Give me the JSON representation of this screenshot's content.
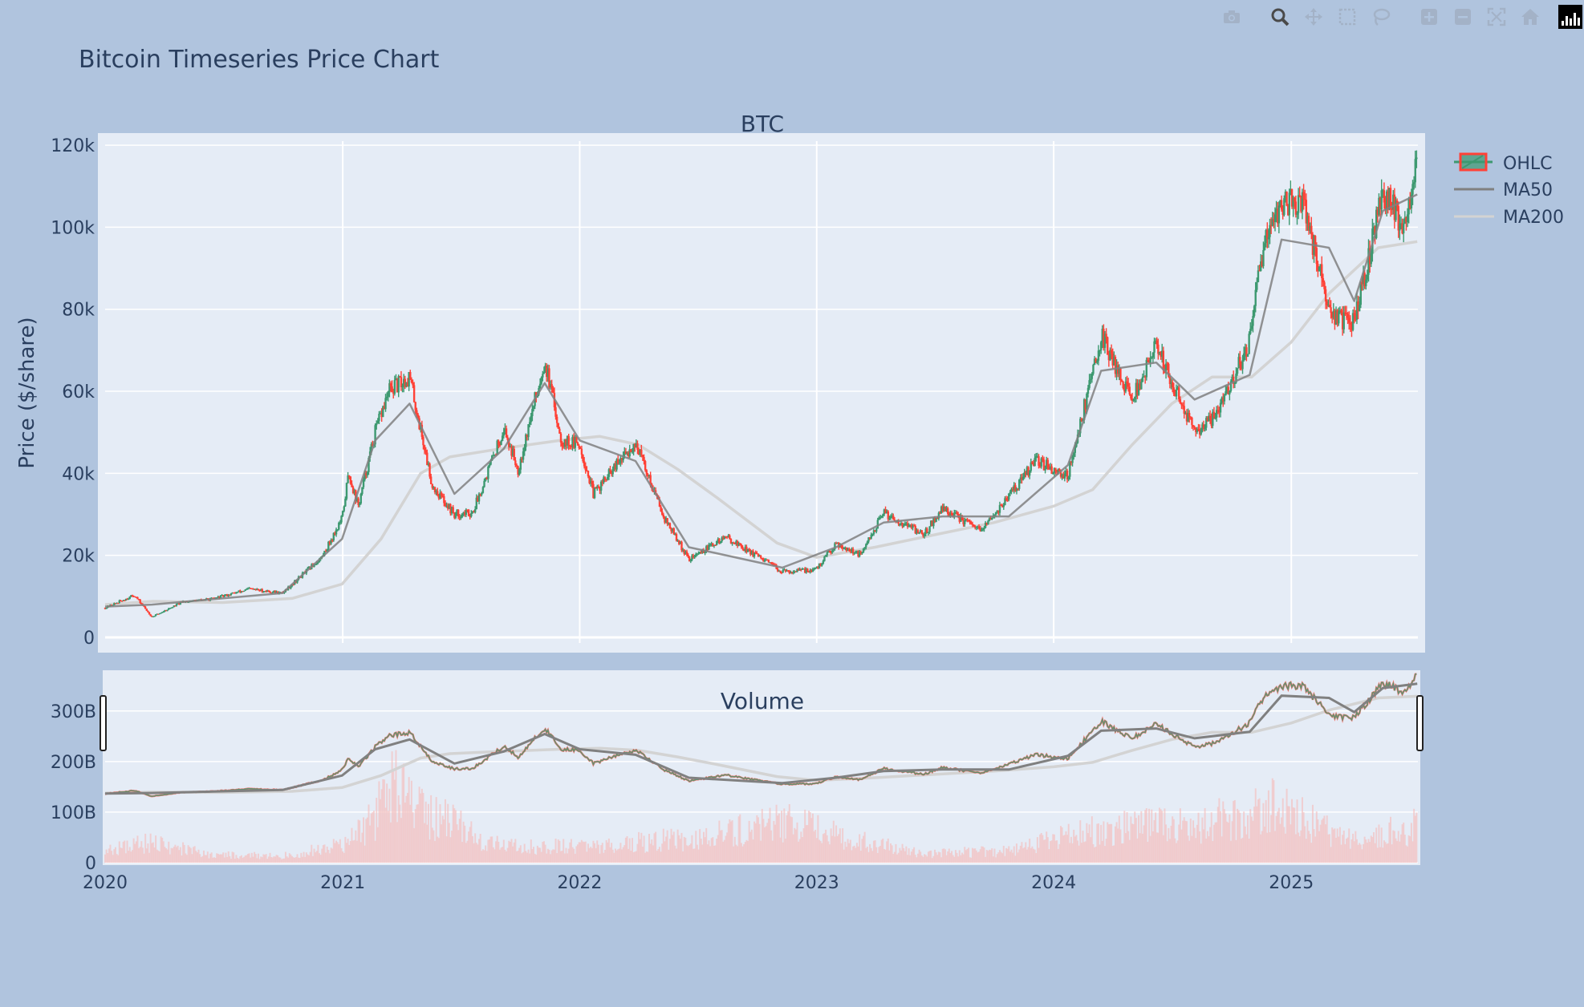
{
  "title": "Bitcoin Timeseries Price Chart",
  "toolbar": [
    {
      "name": "camera-icon",
      "active": false
    },
    {
      "name": "zoom-icon",
      "active": true
    },
    {
      "name": "pan-icon",
      "active": false
    },
    {
      "name": "box-select-icon",
      "active": false
    },
    {
      "name": "lasso-select-icon",
      "active": false
    },
    {
      "name": "zoom-in-icon",
      "active": false
    },
    {
      "name": "zoom-out-icon",
      "active": false
    },
    {
      "name": "autoscale-icon",
      "active": false
    },
    {
      "name": "reset-axes-icon",
      "active": false
    },
    {
      "name": "plotly-logo-icon",
      "active": false
    }
  ],
  "colors": {
    "paper": "#b0c4de",
    "plot": "#e5ecf6",
    "increasing": "#3d9970",
    "decreasing": "#ff4136",
    "ma50": "#808080",
    "ma200": "#d3d3d3",
    "volume": "#f4c2c2",
    "text": "#2a3f5f"
  },
  "chart_data": [
    {
      "type": "candlestick",
      "subplot_title": "BTC",
      "ylabel": "Price ($/share)",
      "ylim": [
        0,
        121000
      ],
      "yticks": [
        0,
        20000,
        40000,
        60000,
        80000,
        100000,
        120000
      ],
      "ytick_labels": [
        "0",
        "20k",
        "40k",
        "60k",
        "80k",
        "100k",
        "120k"
      ],
      "xlim": [
        "2020-01-01",
        "2025-07-15"
      ],
      "xticks": [
        "2021-01-01",
        "2022-01-01",
        "2023-01-01",
        "2024-01-01",
        "2025-01-01"
      ],
      "legend": {
        "position": "top-right",
        "entries": [
          "OHLC",
          "MA50",
          "MA200"
        ]
      },
      "series": [
        {
          "name": "OHLC",
          "kind": "ohlc",
          "x": [
            "2020-01-01",
            "2020-02-15",
            "2020-03-13",
            "2020-04-30",
            "2020-06-15",
            "2020-08-10",
            "2020-09-30",
            "2020-11-30",
            "2020-12-31",
            "2021-01-10",
            "2021-01-25",
            "2021-02-20",
            "2021-03-13",
            "2021-04-14",
            "2021-05-19",
            "2021-06-22",
            "2021-07-20",
            "2021-09-06",
            "2021-09-28",
            "2021-11-08",
            "2021-12-04",
            "2022-01-01",
            "2022-01-22",
            "2022-03-28",
            "2022-05-12",
            "2022-06-18",
            "2022-08-14",
            "2022-11-09",
            "2022-12-31",
            "2023-01-31",
            "2023-03-10",
            "2023-04-14",
            "2023-06-15",
            "2023-07-14",
            "2023-09-11",
            "2023-10-24",
            "2023-12-05",
            "2024-01-23",
            "2024-03-14",
            "2024-05-01",
            "2024-06-07",
            "2024-08-05",
            "2024-09-06",
            "2024-10-29",
            "2024-11-22",
            "2024-12-17",
            "2025-01-20",
            "2025-02-28",
            "2025-04-08",
            "2025-05-22",
            "2025-06-22",
            "2025-07-14"
          ],
          "close": [
            7200,
            10300,
            5000,
            8700,
            9400,
            11800,
            10800,
            19600,
            29000,
            40000,
            32000,
            50000,
            60000,
            63500,
            37000,
            30000,
            30500,
            51000,
            41000,
            67500,
            48000,
            47000,
            35000,
            47500,
            29000,
            19000,
            24500,
            16000,
            16500,
            23000,
            20000,
            30500,
            25000,
            31500,
            25800,
            34500,
            43000,
            39500,
            73500,
            58000,
            71000,
            50000,
            54000,
            72000,
            99000,
            106000,
            106000,
            79000,
            76500,
            109000,
            100500,
            116000
          ]
        },
        {
          "name": "MA50",
          "kind": "line",
          "x": [
            "2020-01-01",
            "2020-03-13",
            "2020-06-15",
            "2020-09-30",
            "2020-12-31",
            "2021-02-20",
            "2021-04-14",
            "2021-06-22",
            "2021-09-06",
            "2021-11-08",
            "2022-01-01",
            "2022-03-28",
            "2022-06-18",
            "2022-11-09",
            "2023-01-31",
            "2023-04-14",
            "2023-07-14",
            "2023-10-24",
            "2024-01-23",
            "2024-03-14",
            "2024-06-07",
            "2024-08-05",
            "2024-10-29",
            "2024-12-17",
            "2025-02-28",
            "2025-04-08",
            "2025-05-22",
            "2025-07-14"
          ],
          "y": [
            7500,
            8000,
            9300,
            10800,
            24000,
            48000,
            57000,
            35000,
            46000,
            62000,
            48000,
            43000,
            22000,
            17000,
            22000,
            28000,
            29500,
            29500,
            42000,
            65000,
            67000,
            58000,
            64000,
            97000,
            95000,
            82000,
            104000,
            108000
          ]
        },
        {
          "name": "MA200",
          "kind": "line",
          "x": [
            "2020-01-01",
            "2020-03-15",
            "2020-06-30",
            "2020-10-15",
            "2020-12-31",
            "2021-03-01",
            "2021-05-01",
            "2021-06-15",
            "2021-09-01",
            "2021-12-01",
            "2022-02-01",
            "2022-04-01",
            "2022-06-01",
            "2022-08-01",
            "2022-11-01",
            "2023-01-01",
            "2023-04-01",
            "2023-07-01",
            "2023-10-01",
            "2024-01-01",
            "2024-03-01",
            "2024-05-01",
            "2024-07-01",
            "2024-09-01",
            "2024-11-01",
            "2025-01-01",
            "2025-03-01",
            "2025-05-15",
            "2025-07-14"
          ],
          "y": [
            8000,
            8800,
            8500,
            9500,
            13000,
            24000,
            40000,
            44000,
            46000,
            48000,
            49000,
            47000,
            41000,
            34000,
            23000,
            19500,
            22000,
            25000,
            28000,
            32000,
            36000,
            47000,
            57000,
            63500,
            63500,
            72000,
            84000,
            95000,
            96500
          ]
        }
      ]
    },
    {
      "type": "bar",
      "subplot_title": "Volume",
      "ylim": [
        0,
        390000000000
      ],
      "yticks": [
        0,
        100000000000,
        200000000000,
        300000000000
      ],
      "ytick_labels": [
        "0",
        "100B",
        "200B",
        "300B"
      ],
      "xtick_labels": [
        "2020",
        "2021",
        "2022",
        "2023",
        "2024",
        "2025"
      ],
      "series": [
        {
          "name": "Volume",
          "x": [
            "2020-01-01",
            "2020-03-13",
            "2020-06-15",
            "2020-09-30",
            "2020-12-31",
            "2021-02-20",
            "2021-03-13",
            "2021-05-19",
            "2021-09-06",
            "2021-11-08",
            "2022-01-22",
            "2022-05-12",
            "2022-06-18",
            "2022-11-09",
            "2023-03-10",
            "2023-06-15",
            "2023-10-24",
            "2024-03-14",
            "2024-08-05",
            "2024-11-12",
            "2024-12-05",
            "2025-02-03",
            "2025-04-08",
            "2025-07-14"
          ],
          "y": [
            30000000000,
            55000000000,
            20000000000,
            18000000000,
            45000000000,
            120000000000,
            220000000000,
            125000000000,
            40000000000,
            45000000000,
            40000000000,
            60000000000,
            55000000000,
            110000000000,
            55000000000,
            25000000000,
            30000000000,
            90000000000,
            100000000000,
            130000000000,
            150000000000,
            100000000000,
            60000000000,
            95000000000
          ]
        }
      ]
    }
  ]
}
